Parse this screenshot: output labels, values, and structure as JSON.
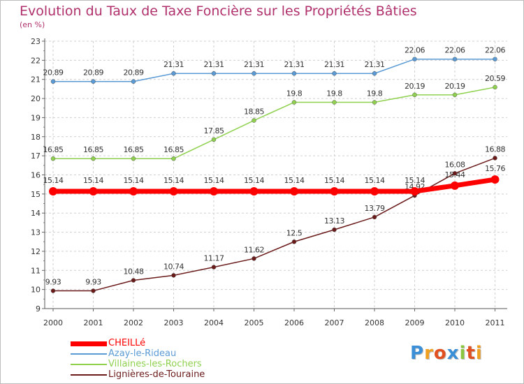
{
  "title": "Evolution du Taux de Taxe Foncière sur les Propriétés Bâties",
  "subtitle": "(en %)",
  "logo_text": "Proxiti",
  "chart_data": {
    "type": "line",
    "title": "Evolution du Taux de Taxe Foncière sur les Propriétés Bâties",
    "ylabel": "(en %)",
    "xlabel": "",
    "ylim": [
      9,
      23
    ],
    "yticks": [
      "9",
      "10",
      "11",
      "12",
      "13",
      "14",
      "15",
      "16",
      "17",
      "18",
      "19",
      "20",
      "21",
      "22",
      "23"
    ],
    "x": [
      "2000",
      "2001",
      "2002",
      "2003",
      "2004",
      "2005",
      "2006",
      "2007",
      "2008",
      "2009",
      "2010",
      "2011"
    ],
    "grid": true,
    "legend_position": "bottom-left",
    "series": [
      {
        "name": "Azay-le-Rideau",
        "color": "#5b9bd5",
        "values": [
          20.89,
          20.89,
          20.89,
          21.31,
          21.31,
          21.31,
          21.31,
          21.31,
          21.31,
          22.06,
          22.06,
          22.06
        ],
        "labels": [
          "20.89",
          "20.89",
          "20.89",
          "21.31",
          "21.31",
          "21.31",
          "21.31",
          "21.31",
          "21.31",
          "22.06",
          "22.06",
          "22.06"
        ]
      },
      {
        "name": "Villaines-les-Rochers",
        "color": "#8fd14f",
        "values": [
          16.85,
          16.85,
          16.85,
          16.85,
          17.85,
          18.85,
          19.8,
          19.8,
          19.8,
          20.19,
          20.19,
          20.59
        ],
        "labels": [
          "16.85",
          "16.85",
          "16.85",
          "16.85",
          "17.85",
          "18.85",
          "19.8",
          "19.8",
          "19.8",
          "20.19",
          "20.19",
          "20.59"
        ]
      },
      {
        "name": "Lignières-de-Touraine",
        "color": "#6b1a1a",
        "values": [
          9.93,
          9.93,
          10.48,
          10.74,
          11.17,
          11.62,
          12.5,
          13.13,
          13.79,
          14.92,
          16.08,
          16.88
        ],
        "labels": [
          "9.93",
          "9.93",
          "10.48",
          "10.74",
          "11.17",
          "11.62",
          "12.5",
          "13.13",
          "13.79",
          "14.92",
          "16.08",
          "16.88"
        ]
      },
      {
        "name": "CHEILLé",
        "color": "#ff0000",
        "values": [
          15.14,
          15.14,
          15.14,
          15.14,
          15.14,
          15.14,
          15.14,
          15.14,
          15.14,
          15.14,
          15.44,
          15.76
        ],
        "labels": [
          "15.14",
          "15.14",
          "15.14",
          "15.14",
          "15.14",
          "15.14",
          "15.14",
          "15.14",
          "15.14",
          "15.14",
          "15.44",
          "15.76"
        ]
      }
    ]
  },
  "legend": [
    {
      "name": "CHEILLé",
      "color": "#ff0000"
    },
    {
      "name": "Azay-le-Rideau",
      "color": "#5b9bd5"
    },
    {
      "name": "Villaines-les-Rochers",
      "color": "#8fd14f"
    },
    {
      "name": "Lignières-de-Touraine",
      "color": "#6b1a1a"
    }
  ]
}
